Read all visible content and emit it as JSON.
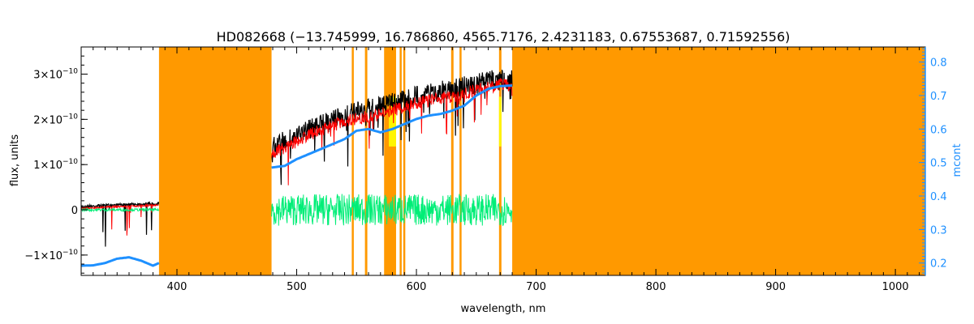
{
  "chart_data": {
    "type": "line",
    "title": "HD082668    (−13.745999, 16.786860, 4565.7176, 2.4231183, 0.67553687, 0.71592556)",
    "xlabel": "wavelength, nm",
    "ylabel": "flux, units",
    "y2label": "mcont",
    "xlim": [
      320,
      1025
    ],
    "ylim": [
      -1.45e-10,
      3.6e-10
    ],
    "y2lim": [
      0.163,
      0.845
    ],
    "x_ticks": [
      400,
      500,
      600,
      700,
      800,
      900,
      1000
    ],
    "x_tick_labels": [
      "400",
      "500",
      "600",
      "700",
      "800",
      "900",
      "1000"
    ],
    "y_ticks": [
      -1e-10,
      0,
      1e-10,
      2e-10,
      3e-10
    ],
    "y_tick_labels": [
      {
        "mant": "−1×10",
        "exp": "−10"
      },
      {
        "mant": "0",
        "exp": ""
      },
      {
        "mant": "1×10",
        "exp": "−10"
      },
      {
        "mant": "2×10",
        "exp": "−10"
      },
      {
        "mant": "3×10",
        "exp": "−10"
      }
    ],
    "y2_ticks": [
      0.2,
      0.3,
      0.4,
      0.5,
      0.6,
      0.7,
      0.8
    ],
    "y2_tick_labels": [
      "0.2",
      "0.3",
      "0.4",
      "0.5",
      "0.6",
      "0.7",
      "0.8"
    ],
    "masked_regions": [
      [
        385,
        479
      ],
      [
        546,
        547
      ],
      [
        557,
        559
      ],
      [
        573,
        583
      ],
      [
        586,
        587
      ],
      [
        589,
        590
      ],
      [
        629,
        631
      ],
      [
        636,
        637
      ],
      [
        669,
        671
      ],
      [
        680,
        1025
      ]
    ],
    "yellow_regions": [
      [
        577,
        583
      ],
      [
        669,
        671
      ]
    ],
    "series": [
      {
        "role": "observed",
        "color": "#000000",
        "x": [
          320,
          340,
          360,
          380,
          385,
          479,
          490,
          500,
          510,
          520,
          530,
          540,
          550,
          560,
          570,
          580,
          590,
          600,
          610,
          620,
          630,
          640,
          650,
          660,
          670,
          680
        ],
        "y": [
          1e-11,
          1.3e-11,
          1.5e-11,
          1.7e-11,
          1.8e-11,
          1.6e-10,
          1.75e-10,
          1.85e-10,
          2e-10,
          2.1e-10,
          2.2e-10,
          2.3e-10,
          2.4e-10,
          2.45e-10,
          2.5e-10,
          2.6e-10,
          2.65e-10,
          2.75e-10,
          2.8e-10,
          2.85e-10,
          2.9e-10,
          2.95e-10,
          3e-10,
          3.1e-10,
          3.1e-10,
          3.1e-10
        ]
      },
      {
        "role": "model",
        "color": "#ff0000",
        "x": [
          320,
          340,
          360,
          380,
          385,
          479,
          490,
          500,
          510,
          520,
          530,
          540,
          550,
          560,
          570,
          580,
          590,
          600,
          610,
          620,
          630,
          640,
          650,
          660,
          670,
          680
        ],
        "y": [
          5e-12,
          8e-12,
          1e-11,
          1.2e-11,
          1.2e-11,
          1.4e-10,
          1.5e-10,
          1.65e-10,
          1.8e-10,
          1.9e-10,
          2e-10,
          2.1e-10,
          2.15e-10,
          2.2e-10,
          2.25e-10,
          2.35e-10,
          2.4e-10,
          2.5e-10,
          2.55e-10,
          2.6e-10,
          2.65e-10,
          2.7e-10,
          2.8e-10,
          2.85e-10,
          2.9e-10,
          2.9e-10
        ]
      },
      {
        "role": "residual",
        "color": "#00ee77",
        "x": [
          320,
          385,
          479,
          680
        ],
        "y": [
          0.0,
          0.0,
          0.0,
          0.0
        ]
      },
      {
        "role": "mcont",
        "axis": "right",
        "color": "#1e90ff",
        "x": [
          320,
          330,
          340,
          350,
          360,
          370,
          380,
          385,
          479,
          490,
          500,
          510,
          520,
          530,
          540,
          550,
          560,
          570,
          580,
          590,
          600,
          610,
          620,
          630,
          640,
          650,
          660,
          670,
          680
        ],
        "y": [
          0.192,
          0.193,
          0.2,
          0.213,
          0.217,
          0.207,
          0.192,
          0.2,
          0.485,
          0.49,
          0.51,
          0.525,
          0.54,
          0.555,
          0.57,
          0.595,
          0.6,
          0.59,
          0.6,
          0.615,
          0.63,
          0.64,
          0.645,
          0.655,
          0.67,
          0.7,
          0.72,
          0.728,
          0.73
        ]
      }
    ],
    "colors": {
      "mask": "#ff9900",
      "yellow": "#ffff00",
      "right_axis": "#1e90ff",
      "frame": "#000000"
    },
    "grid": false,
    "legend": "none"
  }
}
